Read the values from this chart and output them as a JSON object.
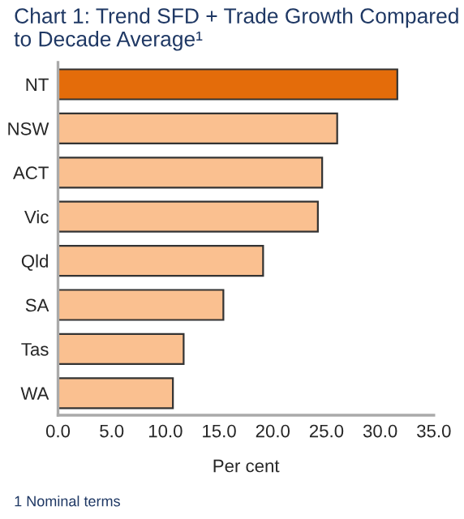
{
  "chart_data": {
    "type": "bar",
    "orientation": "horizontal",
    "title": "Chart 1: Trend SFD + Trade Growth Compared to Decade Average¹",
    "xlabel": "Per cent",
    "annotations": [
      "1 Nominal terms"
    ],
    "categories": [
      "NT",
      "NSW",
      "ACT",
      "Vic",
      "Qld",
      "SA",
      "Tas",
      "WA"
    ],
    "values": [
      31.6,
      26.0,
      24.6,
      24.2,
      19.1,
      15.4,
      11.7,
      10.7
    ],
    "colors": [
      "#e46c0a",
      "#fac090",
      "#fac090",
      "#fac090",
      "#fac090",
      "#fac090",
      "#fac090",
      "#fac090"
    ],
    "xlim": [
      0,
      35
    ],
    "xticks": [
      {
        "value": 0,
        "label": "0.0"
      },
      {
        "value": 5,
        "label": "5.0"
      },
      {
        "value": 10,
        "label": "10.0"
      },
      {
        "value": 15,
        "label": "15.0"
      },
      {
        "value": 20,
        "label": "20.0"
      },
      {
        "value": 25,
        "label": "25.0"
      },
      {
        "value": 30,
        "label": "30.0"
      },
      {
        "value": 35,
        "label": "35.0"
      }
    ],
    "grid": false,
    "legend": false
  }
}
